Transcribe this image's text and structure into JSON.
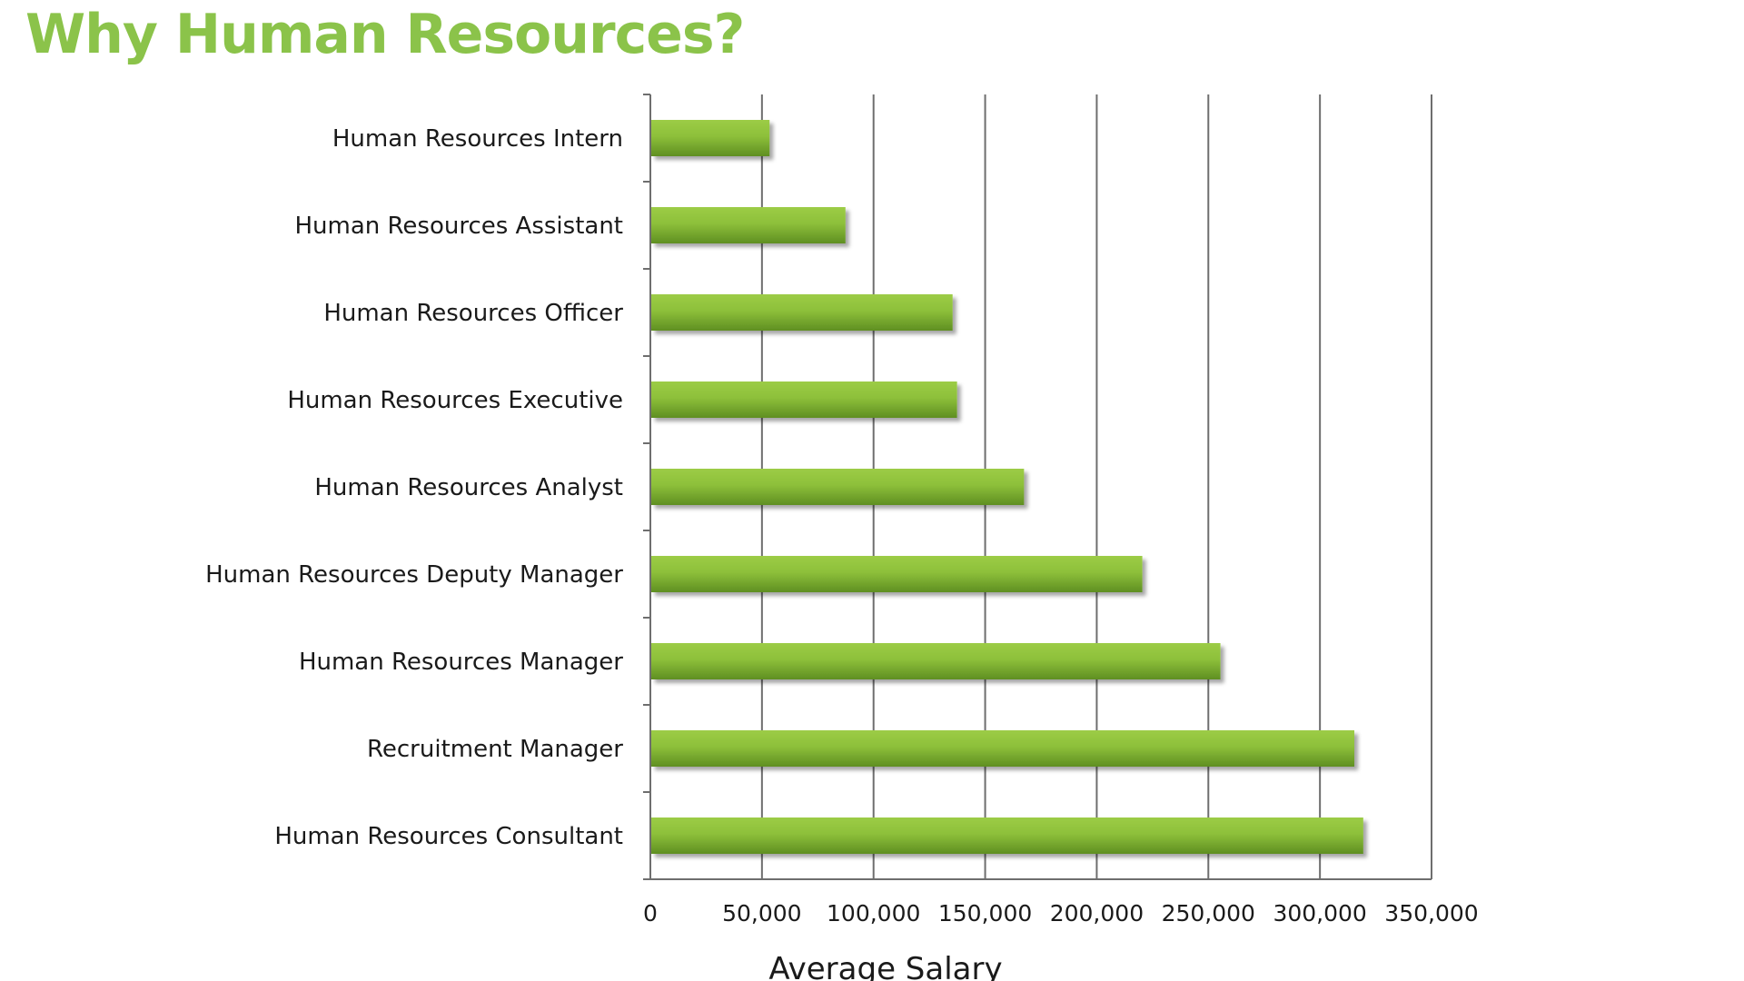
{
  "colors": {
    "accent": "#8bc34a",
    "bar_light": "#9ccc46",
    "bar_dark": "#5f8f22",
    "grid": "#6e6e6e",
    "text": "#1a1a1a"
  },
  "chart_data": {
    "type": "bar",
    "orientation": "horizontal",
    "title": "Why Human Resources?",
    "xlabel": "Average Salary",
    "ylabel": "",
    "xlim": [
      0,
      350000
    ],
    "xticks": [
      0,
      50000,
      100000,
      150000,
      200000,
      250000,
      300000,
      350000
    ],
    "xtick_labels": [
      "0",
      "50,000",
      "100,000",
      "150,000",
      "200,000",
      "250,000",
      "300,000",
      "350,000"
    ],
    "grid": "vertical",
    "legend": "none",
    "categories": [
      "Human Resources Intern",
      "Human Resources Assistant",
      "Human Resources Officer",
      "Human Resources Executive",
      "Human Resources Analyst",
      "Human Resources Deputy Manager",
      "Human Resources Manager",
      "Recruitment Manager",
      "Human Resources Consultant"
    ],
    "values": [
      53000,
      87000,
      135000,
      137000,
      167000,
      220000,
      255000,
      315000,
      319000
    ]
  }
}
